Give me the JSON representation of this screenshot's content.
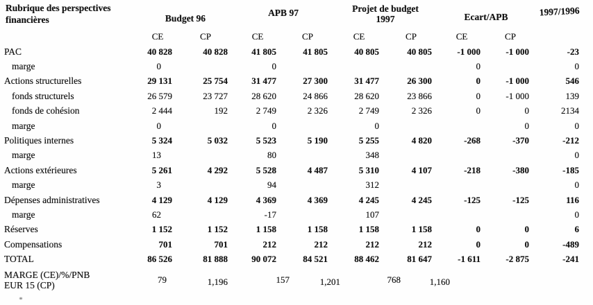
{
  "table": {
    "corner": {
      "line1": "Rubrique des perspectives",
      "line2": "financières"
    },
    "groups": [
      {
        "id": "budget96",
        "label": "Budget 96",
        "sub": [
          "CE",
          "CP"
        ]
      },
      {
        "id": "apb97",
        "label": "APB 97",
        "sub": [
          "CE",
          "CP"
        ]
      },
      {
        "id": "projet97",
        "label_line1": "Projet de budget",
        "label_line2": "1997",
        "sub": [
          "CE",
          "CP"
        ]
      },
      {
        "id": "ecart",
        "label": "Ecart/APB",
        "sub": [
          "CE",
          "CP"
        ]
      },
      {
        "id": "ratio",
        "label": "1997/1996",
        "sub": []
      }
    ],
    "columns": [
      "budget96-ce",
      "budget96-cp",
      "apb97-ce",
      "apb97-cp",
      "projet97-ce",
      "projet97-cp",
      "ecart-ce",
      "ecart-cp",
      "ratio-1997-1996"
    ],
    "rows": [
      {
        "label": "PAC",
        "indent": 0,
        "style": "main",
        "values": [
          "40 828",
          "40 828",
          "41 805",
          "41 805",
          "40 805",
          "40 805",
          "-1 000",
          "-1 000",
          "-23"
        ]
      },
      {
        "label": "marge",
        "indent": 1,
        "style": "sub",
        "values": [
          "0",
          "",
          "0",
          "",
          "",
          "",
          "0",
          "",
          "0"
        ]
      },
      {
        "label": "Actions structurelles",
        "indent": 0,
        "style": "main",
        "values": [
          "29 131",
          "25 754",
          "31 477",
          "27 300",
          "31 477",
          "26 300",
          "0",
          "-1 000",
          "546"
        ]
      },
      {
        "label": "fonds structurels",
        "indent": 1,
        "style": "sub",
        "values": [
          "26 579",
          "23 727",
          "28 620",
          "24 866",
          "28 620",
          "23 866",
          "0",
          "-1 000",
          "139"
        ]
      },
      {
        "label": "fonds de cohésion",
        "indent": 1,
        "style": "sub",
        "values": [
          "2 444",
          "192",
          "2 749",
          "2 326",
          "2 749",
          "2 326",
          "0",
          "0",
          "2134"
        ]
      },
      {
        "label": "marge",
        "indent": 1,
        "style": "sub",
        "values": [
          "0",
          "",
          "0",
          "",
          "0",
          "",
          "",
          "0",
          "0"
        ]
      },
      {
        "label": "Politiques internes",
        "indent": 0,
        "style": "main",
        "values": [
          "5 324",
          "5 032",
          "5 523",
          "5 190",
          "5 255",
          "4 820",
          "-268",
          "-370",
          "-212"
        ]
      },
      {
        "label": "marge",
        "indent": 1,
        "style": "sub",
        "values": [
          "13",
          "",
          "80",
          "",
          "348",
          "",
          "",
          "",
          "0"
        ]
      },
      {
        "label": "Actions extérieures",
        "indent": 0,
        "style": "main",
        "values": [
          "5 261",
          "4 292",
          "5 528",
          "4 487",
          "5 310",
          "4 107",
          "-218",
          "-380",
          "-185"
        ]
      },
      {
        "label": "marge",
        "indent": 1,
        "style": "sub",
        "values": [
          "3",
          "",
          "94",
          "",
          "312",
          "",
          "",
          "",
          "0"
        ]
      },
      {
        "label": "Dépenses administratives",
        "indent": 0,
        "style": "main",
        "values": [
          "4 129",
          "4 129",
          "4 369",
          "4 369",
          "4 245",
          "4 245",
          "-125",
          "-125",
          "116"
        ]
      },
      {
        "label": "marge",
        "indent": 1,
        "style": "sub",
        "values": [
          "62",
          "",
          "-17",
          "",
          "107",
          "",
          "",
          "",
          "0"
        ]
      },
      {
        "label": "Réserves",
        "indent": 0,
        "style": "main",
        "values": [
          "1 152",
          "1 152",
          "1 158",
          "1 158",
          "1 158",
          "1 158",
          "0",
          "0",
          "6"
        ]
      },
      {
        "label": "Compensations",
        "indent": 0,
        "style": "main",
        "values": [
          "701",
          "701",
          "212",
          "212",
          "212",
          "212",
          "0",
          "0",
          "-489"
        ]
      },
      {
        "label": "TOTAL",
        "indent": 0,
        "style": "main",
        "values": [
          "86 526",
          "81 888",
          "90 072",
          "84 521",
          "88 462",
          "81 647",
          "-1 611",
          "-2 875",
          "-241"
        ]
      },
      {
        "label": "MARGE (CE)/%/PNB",
        "label2": "EUR 15 (CP)",
        "indent": 0,
        "style": "pnb",
        "values": [
          "79",
          "1,196",
          "157",
          "1,201",
          "768",
          "1,160",
          "",
          "",
          ""
        ]
      }
    ]
  }
}
